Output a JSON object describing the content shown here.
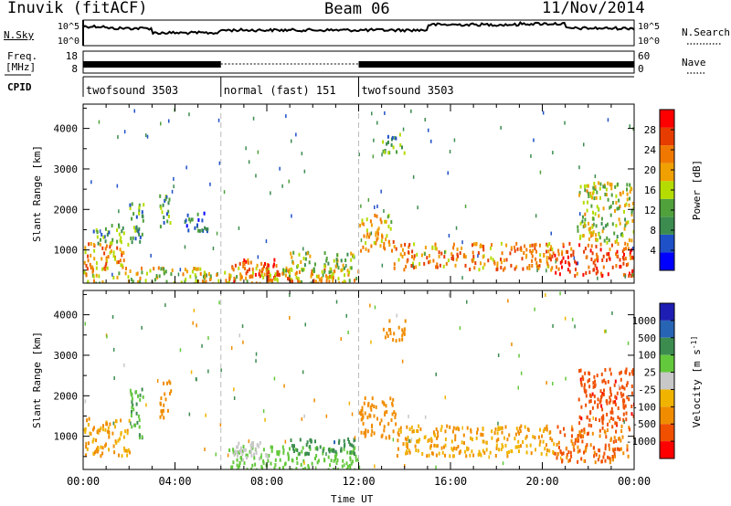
{
  "header": {
    "radar": "Inuvik (fitACF)",
    "beam": "Beam 06",
    "date": "11/Nov/2014"
  },
  "noise_panel": {
    "left_label": "N.Sky",
    "right_label": "N.Search",
    "left_ticks": [
      "10^5",
      "10^0"
    ],
    "right_ticks": [
      "10^5",
      "10^0"
    ]
  },
  "freq_panel": {
    "left_label_1": "Freq.",
    "left_label_2": "[MHz]",
    "right_label": "Nave",
    "left_ticks": [
      "18",
      "8"
    ],
    "right_ticks": [
      "60",
      "0"
    ]
  },
  "cpid_panel": {
    "label": "CPID",
    "segments": [
      {
        "name": "twofsound 3503",
        "start": 0,
        "end": 6
      },
      {
        "name": "normal (fast) 151",
        "start": 6,
        "end": 12
      },
      {
        "name": "twofsound 3503",
        "start": 12,
        "end": 24
      }
    ]
  },
  "colors": {
    "power": [
      "#0000ff",
      "#1e50c8",
      "#3c8c50",
      "#50a03c",
      "#b4dc00",
      "#f0a000",
      "#f07800",
      "#e63c00",
      "#ff0000"
    ],
    "velocity_scale": [
      "#1e1eb4",
      "#2864b4",
      "#3c8c50",
      "#64c83c",
      "#c8c8c8",
      "#f0b400",
      "#f08c00",
      "#f05000",
      "#ff0000"
    ]
  },
  "chart_data": [
    {
      "type": "heatmap",
      "title": "Power",
      "ylabel": "Slant Range [km]",
      "yticks": [
        "1000",
        "2000",
        "3000",
        "4000"
      ],
      "ylim": [
        180,
        4600
      ],
      "xlim": [
        0,
        24
      ],
      "colorbar_label": "Power [dB]",
      "colorbar_ticks": [
        "4",
        "8",
        "12",
        "16",
        "20",
        "24",
        "28"
      ],
      "colorbar_range": [
        0,
        32
      ],
      "regions": [
        {
          "t0": 0.0,
          "t1": 2.0,
          "r0": 550,
          "r1": 1200,
          "v": 22
        },
        {
          "t0": 0.4,
          "t1": 1.8,
          "r0": 1200,
          "r1": 1700,
          "v": 12
        },
        {
          "t0": 2.0,
          "t1": 2.6,
          "r0": 1000,
          "r1": 2200,
          "v": 10
        },
        {
          "t0": 3.3,
          "t1": 3.8,
          "r0": 1500,
          "r1": 2400,
          "v": 10
        },
        {
          "t0": 4.4,
          "t1": 5.5,
          "r0": 1500,
          "r1": 2000,
          "v": 8
        },
        {
          "t0": 0.0,
          "t1": 12.0,
          "r0": 190,
          "r1": 600,
          "v": 18
        },
        {
          "t0": 6.3,
          "t1": 8.5,
          "r0": 250,
          "r1": 800,
          "v": 26
        },
        {
          "t0": 8.0,
          "t1": 11.0,
          "r0": 250,
          "r1": 550,
          "v": 22
        },
        {
          "t0": 9.0,
          "t1": 11.8,
          "r0": 500,
          "r1": 1000,
          "v": 14
        },
        {
          "t0": 12.0,
          "t1": 13.5,
          "r0": 1000,
          "r1": 1900,
          "v": 20
        },
        {
          "t0": 13.0,
          "t1": 14.0,
          "r0": 3400,
          "r1": 3900,
          "v": 12
        },
        {
          "t0": 13.5,
          "t1": 20.5,
          "r0": 550,
          "r1": 1200,
          "v": 22
        },
        {
          "t0": 20.5,
          "t1": 24.0,
          "r0": 400,
          "r1": 1200,
          "v": 26
        },
        {
          "t0": 21.5,
          "t1": 24.0,
          "r0": 1200,
          "r1": 2700,
          "v": 16
        }
      ]
    },
    {
      "type": "heatmap",
      "title": "Velocity",
      "ylabel": "Slant Range [km]",
      "yticks": [
        "1000",
        "2000",
        "3000",
        "4000"
      ],
      "ylim": [
        180,
        4600
      ],
      "xlim": [
        0,
        24
      ],
      "colorbar_label": "Velocity [m s^-1]",
      "colorbar_ticks": [
        "1000",
        "500",
        "100",
        "25",
        "-25",
        "-100",
        "-500",
        "-1000"
      ],
      "regions": [
        {
          "t0": 0.0,
          "t1": 2.0,
          "r0": 550,
          "r1": 1500,
          "v": -100
        },
        {
          "t0": 2.0,
          "t1": 2.6,
          "r0": 1000,
          "r1": 2200,
          "v": 100
        },
        {
          "t0": 3.3,
          "t1": 3.8,
          "r0": 1500,
          "r1": 2400,
          "v": -300
        },
        {
          "t0": 6.3,
          "t1": 12.0,
          "r0": 190,
          "r1": 800,
          "v": 60
        },
        {
          "t0": 6.5,
          "t1": 8.0,
          "r0": 400,
          "r1": 900,
          "v": 0
        },
        {
          "t0": 9.0,
          "t1": 11.8,
          "r0": 600,
          "r1": 1000,
          "v": 400
        },
        {
          "t0": 12.0,
          "t1": 13.6,
          "r0": 1000,
          "r1": 2000,
          "v": -250
        },
        {
          "t0": 13.0,
          "t1": 14.0,
          "r0": 3400,
          "r1": 3900,
          "v": -150
        },
        {
          "t0": 13.6,
          "t1": 20.5,
          "r0": 550,
          "r1": 1300,
          "v": -100
        },
        {
          "t0": 20.5,
          "t1": 24.0,
          "r0": 400,
          "r1": 1300,
          "v": -500
        },
        {
          "t0": 21.5,
          "t1": 24.0,
          "r0": 1300,
          "r1": 2700,
          "v": -800
        }
      ]
    }
  ],
  "xaxis": {
    "label": "Time UT",
    "ticks": [
      "00:00",
      "04:00",
      "08:00",
      "12:00",
      "16:00",
      "20:00",
      "00:00"
    ]
  }
}
